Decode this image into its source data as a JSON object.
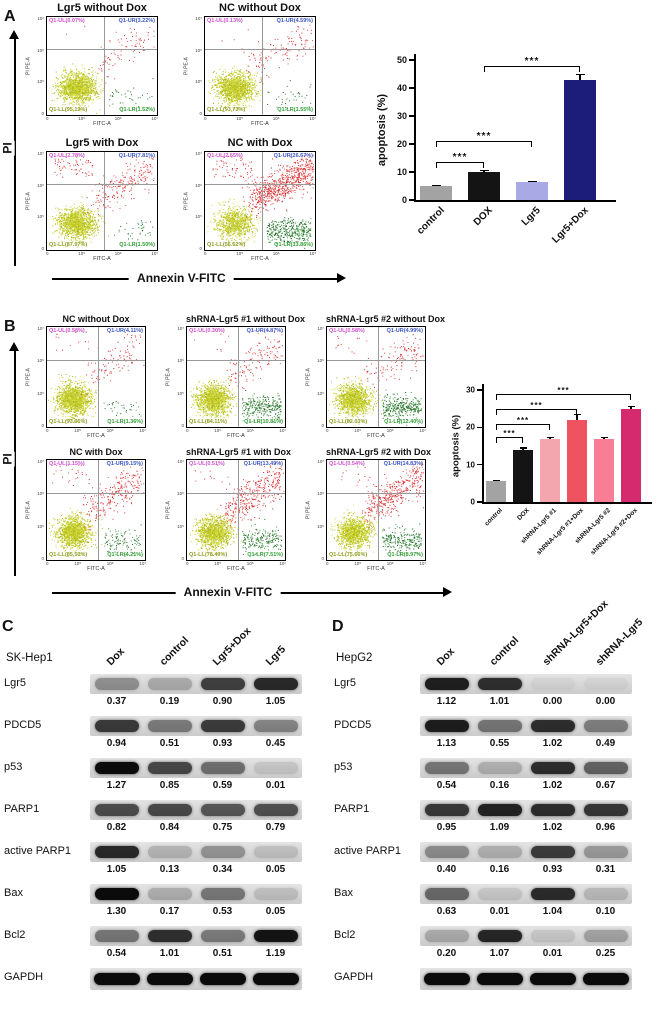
{
  "panels": {
    "A": {
      "label": "A",
      "y_arrow_label": "PI",
      "x_arrow_label": "Annexin V-FITC",
      "axis_y_label": "PI PE-A",
      "axis_x_label": "FITC-A",
      "x_ticks": [
        "0",
        "10⁵",
        "10⁶",
        "10⁷"
      ],
      "y_ticks": [
        "10⁷",
        "10⁶",
        "10⁵",
        "0"
      ],
      "plots": [
        {
          "title": "Lgr5 without Dox",
          "ul": "Q1-UL(0.07%)",
          "ur": "Q1-UR(3.22%)",
          "ll": "Q1-LL(95.19%)",
          "lr": "Q1-LR(1.52%)",
          "pct": {
            "ul": 0.07,
            "ur": 3.22,
            "ll": 95.19,
            "lr": 1.52
          }
        },
        {
          "title": "NC without Dox",
          "ul": "Q1-UL(0.13%)",
          "ur": "Q1-UR(4.59%)",
          "ll": "Q1-LL(93.73%)",
          "lr": "Q1-LR(1.55%)",
          "pct": {
            "ul": 0.13,
            "ur": 4.59,
            "ll": 93.73,
            "lr": 1.55
          }
        },
        {
          "title": "Lgr5 with Dox",
          "ul": "Q1-UL(2.78%)",
          "ur": "Q1-UR(7.81%)",
          "ll": "Q1-LL(87.97%)",
          "lr": "Q1-LR(1.50%)",
          "pct": {
            "ul": 2.78,
            "ur": 7.81,
            "ll": 87.97,
            "lr": 1.5
          }
        },
        {
          "title": "NC with Dox",
          "ul": "Q1-UL(2.65%)",
          "ur": "Q1-UR(26.67%)",
          "ll": "Q1-LL(56.62%)",
          "lr": "Q1-LR(13.86%)",
          "pct": {
            "ul": 2.65,
            "ur": 26.67,
            "ll": 56.62,
            "lr": 13.86
          }
        }
      ]
    },
    "B": {
      "label": "B",
      "y_arrow_label": "PI",
      "x_arrow_label": "Annexin V-FITC",
      "axis_y_label": "PI PE-A",
      "axis_x_label": "FITC-A",
      "x_ticks": [
        "0",
        "10⁵",
        "10⁶",
        "10⁷"
      ],
      "y_ticks": [
        "10⁷",
        "10⁶",
        "10⁵",
        "0"
      ],
      "plots": [
        {
          "title": "NC without Dox",
          "ul": "Q1-UL(0.58%)",
          "ur": "Q1-UR(4.11%)",
          "ll": "Q1-LL(93.95%)",
          "lr": "Q1-LR(1.36%)",
          "pct": {
            "ul": 0.58,
            "ur": 4.11,
            "ll": 93.95,
            "lr": 1.36
          }
        },
        {
          "title": "shRNA-Lgr5 #1 without Dox",
          "ul": "Q1-UL(0.30%)",
          "ur": "Q1-UR(4.87%)",
          "ll": "Q1-LL(84.11%)",
          "lr": "Q1-LR(10.81%)",
          "pct": {
            "ul": 0.3,
            "ur": 4.87,
            "ll": 84.11,
            "lr": 10.81
          }
        },
        {
          "title": "shRNA-Lgr5 #2 without Dox",
          "ul": "Q1-UL(0.58%)",
          "ur": "Q1-UR(4.99%)",
          "ll": "Q1-LL(82.03%)",
          "lr": "Q1-LR(12.40%)",
          "pct": {
            "ul": 0.58,
            "ur": 4.99,
            "ll": 82.03,
            "lr": 12.4
          }
        },
        {
          "title": "NC with Dox",
          "ul": "Q1-UL(1.15%)",
          "ur": "Q1-UR(9.15%)",
          "ll": "Q1-LL(85.50%)",
          "lr": "Q1-LR(4.21%)",
          "pct": {
            "ul": 1.15,
            "ur": 9.15,
            "ll": 85.5,
            "lr": 4.21
          }
        },
        {
          "title": "shRNA-Lgr5 #1 with Dox",
          "ul": "Q1-UL(0.51%)",
          "ur": "Q1-UR(13.49%)",
          "ll": "Q1-LL(78.49%)",
          "lr": "Q1-LR(7.51%)",
          "pct": {
            "ul": 0.51,
            "ur": 13.49,
            "ll": 78.49,
            "lr": 7.51
          }
        },
        {
          "title": "shRNA-Lgr5 #2 with Dox",
          "ul": "Q1-UL(0.54%)",
          "ur": "Q1-UR(14.83%)",
          "ll": "Q1-LL(75.66%)",
          "lr": "Q1-LR(8.97%)",
          "pct": {
            "ul": 0.54,
            "ur": 14.83,
            "ll": 75.66,
            "lr": 8.97
          }
        }
      ]
    },
    "C": {
      "label": "C",
      "cell_line": "SK-Hep1",
      "columns": [
        "Dox",
        "control",
        "Lgr5+Dox",
        "Lgr5"
      ],
      "rows": [
        {
          "protein": "Lgr5",
          "values": [
            "0.37",
            "0.19",
            "0.90",
            "1.05"
          ]
        },
        {
          "protein": "PDCD5",
          "values": [
            "0.94",
            "0.51",
            "0.93",
            "0.45"
          ]
        },
        {
          "protein": "p53",
          "values": [
            "1.27",
            "0.85",
            "0.59",
            "0.01"
          ]
        },
        {
          "protein": "PARP1",
          "values": [
            "0.82",
            "0.84",
            "0.75",
            "0.79"
          ]
        },
        {
          "protein": "active PARP1",
          "values": [
            "1.05",
            "0.13",
            "0.34",
            "0.05"
          ]
        },
        {
          "protein": "Bax",
          "values": [
            "1.30",
            "0.17",
            "0.53",
            "0.05"
          ]
        },
        {
          "protein": "Bcl2",
          "values": [
            "0.54",
            "1.01",
            "0.51",
            "1.19"
          ]
        },
        {
          "protein": "GAPDH",
          "values": []
        }
      ]
    },
    "D": {
      "label": "D",
      "cell_line": "HepG2",
      "columns": [
        "Dox",
        "control",
        "shRNA-Lgr5+Dox",
        "shRNA-Lgr5"
      ],
      "rows": [
        {
          "protein": "Lgr5",
          "values": [
            "1.12",
            "1.01",
            "0.00",
            "0.00"
          ]
        },
        {
          "protein": "PDCD5",
          "values": [
            "1.13",
            "0.55",
            "1.02",
            "0.49"
          ]
        },
        {
          "protein": "p53",
          "values": [
            "0.54",
            "0.16",
            "1.02",
            "0.67"
          ]
        },
        {
          "protein": "PARP1",
          "values": [
            "0.95",
            "1.09",
            "1.02",
            "0.96"
          ]
        },
        {
          "protein": "active PARP1",
          "values": [
            "0.40",
            "0.16",
            "0.93",
            "0.31"
          ]
        },
        {
          "protein": "Bax",
          "values": [
            "0.63",
            "0.01",
            "1.04",
            "0.10"
          ]
        },
        {
          "protein": "Bcl2",
          "values": [
            "0.20",
            "1.07",
            "0.01",
            "0.25"
          ]
        },
        {
          "protein": "GAPDH",
          "values": []
        }
      ]
    }
  },
  "chart_data": [
    {
      "type": "bar",
      "title": "",
      "ylabel": "apoptosis (%)",
      "categories": [
        "control",
        "DOX",
        "Lgr5",
        "Lgr5+Dox"
      ],
      "values": [
        5,
        10,
        6.5,
        43
      ],
      "errors": [
        0.5,
        0.8,
        0.4,
        2
      ],
      "colors": [
        "#a3a3a3",
        "#141414",
        "#a9a9e6",
        "#1c1c7a"
      ],
      "ylim": [
        0,
        50
      ],
      "yticks": [
        0,
        10,
        20,
        30,
        40,
        50
      ],
      "grid": false,
      "legend": "none",
      "annotations": [
        {
          "from": 0,
          "to": 1,
          "y": 13.5,
          "label": "***"
        },
        {
          "from": 0,
          "to": 2,
          "y": 21,
          "label": "***"
        },
        {
          "from": 1,
          "to": 3,
          "y": 48,
          "label": "***"
        }
      ]
    },
    {
      "type": "bar",
      "title": "",
      "ylabel": "apoptosis (%)",
      "categories": [
        "control",
        "DOX",
        "shRNA-Lgr5 #1",
        "shRNA-Lgr5 #1+Dox",
        "shRNA-Lgr5 #2",
        "shRNA-Lgr5 #2+Dox"
      ],
      "values": [
        5.5,
        14,
        16.8,
        22,
        17,
        24.8
      ],
      "errors": [
        0.5,
        0.6,
        0.6,
        1.6,
        0.4,
        0.9
      ],
      "colors": [
        "#a3a3a3",
        "#141414",
        "#f4a6ae",
        "#ef5360",
        "#fa7d96",
        "#d62a6e"
      ],
      "ylim": [
        0,
        30
      ],
      "yticks": [
        0,
        10,
        20,
        30
      ],
      "grid": false,
      "legend": "none",
      "annotations": [
        {
          "from": 0,
          "to": 1,
          "y": 17.5,
          "label": "***"
        },
        {
          "from": 0,
          "to": 2,
          "y": 21,
          "label": "***"
        },
        {
          "from": 0,
          "to": 3,
          "y": 25,
          "label": "***"
        },
        {
          "from": 0,
          "to": 5,
          "y": 28.8,
          "label": "***"
        }
      ]
    }
  ]
}
